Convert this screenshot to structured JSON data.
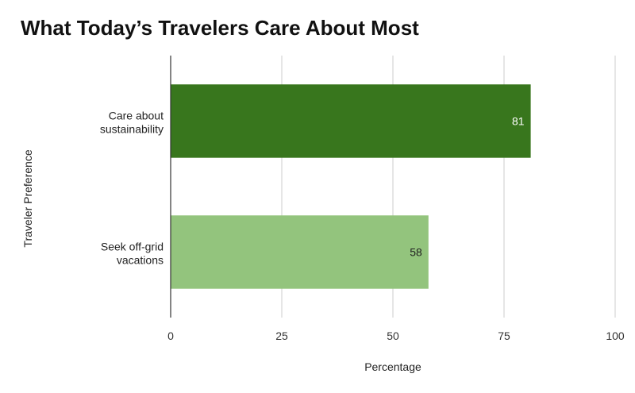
{
  "title": "What Today’s Travelers Care About Most",
  "chart_data": {
    "type": "bar",
    "orientation": "horizontal",
    "title": "What Today’s Travelers Care About Most",
    "xlabel": "Percentage",
    "ylabel": "Traveler Preference",
    "categories": [
      [
        "Care about",
        "sustainability"
      ],
      [
        "Seek off-grid",
        "vacations"
      ]
    ],
    "values": [
      81,
      58
    ],
    "data_labels": [
      "81",
      "58"
    ],
    "xlim": [
      0,
      100
    ],
    "xticks": [
      "0",
      "25",
      "50",
      "75",
      "100"
    ],
    "bar_colors": [
      "#38761d",
      "#93c47d"
    ],
    "label_colors": [
      "#ffffff",
      "#222222"
    ],
    "grid": true,
    "legend": "none"
  }
}
